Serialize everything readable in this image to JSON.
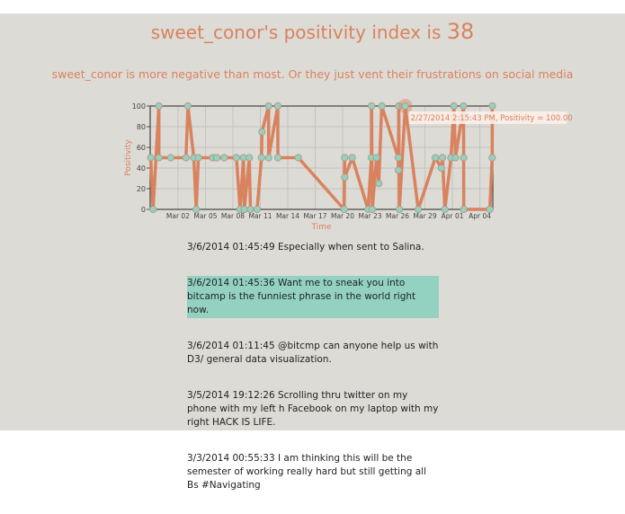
{
  "header": {
    "title_prefix": "sweet_conor's positivity index is",
    "score": "38",
    "subtitle": "sweet_conor is more negative than most. Or they just vent their frustrations on social media"
  },
  "colors": {
    "line": "#d9825e",
    "point_fill": "#93d2c1",
    "point_stroke": "#b49a84",
    "highlight": "#93d2c1",
    "text": "#d9825e"
  },
  "chart_data": {
    "type": "line",
    "xlabel": "Time",
    "ylabel": "Positivity",
    "xlim": [
      "2014-02-26T23:00",
      "2014-04-05T10:00"
    ],
    "ylim": [
      0,
      100
    ],
    "yticks": [
      0,
      20,
      40,
      60,
      80,
      100
    ],
    "xticks": [
      {
        "date": "2014-03-02",
        "label": "Mar 02"
      },
      {
        "date": "2014-03-05",
        "label": "Mar 05"
      },
      {
        "date": "2014-03-08",
        "label": "Mar 08"
      },
      {
        "date": "2014-03-11",
        "label": "Mar 11"
      },
      {
        "date": "2014-03-14",
        "label": "Mar 14"
      },
      {
        "date": "2014-03-17",
        "label": "Mar 17"
      },
      {
        "date": "2014-03-20",
        "label": "Mar 20"
      },
      {
        "date": "2014-03-23",
        "label": "Mar 23"
      },
      {
        "date": "2014-03-26",
        "label": "Mar 26"
      },
      {
        "date": "2014-03-29",
        "label": "Mar 29"
      },
      {
        "date": "2014-04-01",
        "label": "Apr 01"
      },
      {
        "date": "2014-04-04",
        "label": "Apr 04"
      }
    ],
    "grid": true,
    "points": [
      [
        "2014-02-27T00:30",
        50
      ],
      [
        "2014-02-27T06:40",
        0
      ],
      [
        "2014-02-27T21:50",
        100
      ],
      [
        "2014-02-27T22:00",
        50
      ],
      [
        "2014-03-01T05:00",
        50
      ],
      [
        "2014-03-02T21:00",
        50
      ],
      [
        "2014-03-03T02:00",
        100
      ],
      [
        "2014-03-03T17:30",
        50
      ],
      [
        "2014-03-03T23:50",
        0
      ],
      [
        "2014-03-04T05:30",
        50
      ],
      [
        "2014-03-05T19:12",
        50
      ],
      [
        "2014-03-06T05:30",
        50
      ],
      [
        "2014-03-07T01:10",
        50
      ],
      [
        "2014-03-08T09:20",
        50
      ],
      [
        "2014-03-08T19:00",
        0
      ],
      [
        "2014-03-09T03:40",
        50
      ],
      [
        "2014-03-09T06:00",
        0
      ],
      [
        "2014-03-09T19:00",
        50
      ],
      [
        "2014-03-09T22:00",
        0
      ],
      [
        "2014-03-10T15:40",
        0
      ],
      [
        "2014-03-11T03:00",
        50
      ],
      [
        "2014-03-11T04:20",
        75
      ],
      [
        "2014-03-11T21:40",
        100
      ],
      [
        "2014-03-11T21:50",
        50
      ],
      [
        "2014-03-12T21:50",
        100
      ],
      [
        "2014-03-12T22:00",
        50
      ],
      [
        "2014-03-15T03:40",
        50
      ],
      [
        "2014-03-20T04:00",
        0
      ],
      [
        "2014-03-20T05:20",
        50
      ],
      [
        "2014-03-20T05:30",
        31
      ],
      [
        "2014-03-21T01:10",
        50
      ],
      [
        "2014-03-22T18:40",
        0
      ],
      [
        "2014-03-23T03:30",
        50
      ],
      [
        "2014-03-23T04:00",
        100
      ],
      [
        "2014-03-23T05:45",
        0
      ],
      [
        "2014-03-23T16:50",
        50
      ],
      [
        "2014-03-23T22:50",
        25
      ],
      [
        "2014-03-24T06:40",
        100
      ],
      [
        "2014-03-26T02:00",
        50
      ],
      [
        "2014-03-26T02:20",
        38
      ],
      [
        "2014-03-26T03:10",
        100
      ],
      [
        "2014-03-26T04:50",
        0
      ],
      [
        "2014-03-26T20:20",
        100
      ],
      [
        "2014-03-28T06:30",
        0
      ],
      [
        "2014-03-30T03:20",
        50
      ],
      [
        "2014-03-30T19:00",
        40
      ],
      [
        "2014-03-30T22:00",
        50
      ],
      [
        "2014-03-31T04:20",
        0
      ],
      [
        "2014-03-31T20:10",
        50
      ],
      [
        "2014-04-01T04:00",
        100
      ],
      [
        "2014-04-01T08:10",
        50
      ],
      [
        "2014-04-02T05:20",
        100
      ],
      [
        "2014-04-02T05:30",
        50
      ],
      [
        "2014-04-02T05:45",
        0
      ],
      [
        "2014-04-05T02:10",
        0
      ],
      [
        "2014-04-05T08:20",
        50
      ],
      [
        "2014-04-05T08:40",
        100
      ]
    ],
    "highlighted_index": 42,
    "tooltip": "2/27/2014 2:15:43 PM, Positivity = 100.00"
  },
  "tweets": [
    {
      "text": "3/6/2014 01:45:49 Especially when sent to Salina.",
      "highlighted": false
    },
    {
      "text": "3/6/2014 01:45:36 Want me to sneak you into bitcamp is the funniest phrase in the world right now.",
      "highlighted": true
    },
    {
      "text": "3/6/2014 01:11:45 @bitcmp can anyone help us with D3/ general data visualization.",
      "highlighted": false
    },
    {
      "text": "3/5/2014 19:12:26 Scrolling thru twitter on my phone with my left h Facebook on my laptop with my right HACK IS LIFE.",
      "highlighted": false
    },
    {
      "text": "3/3/2014 00:55:33 I am thinking this will be the semester of working really hard but still getting all Bs #Navigating",
      "highlighted": false
    }
  ]
}
